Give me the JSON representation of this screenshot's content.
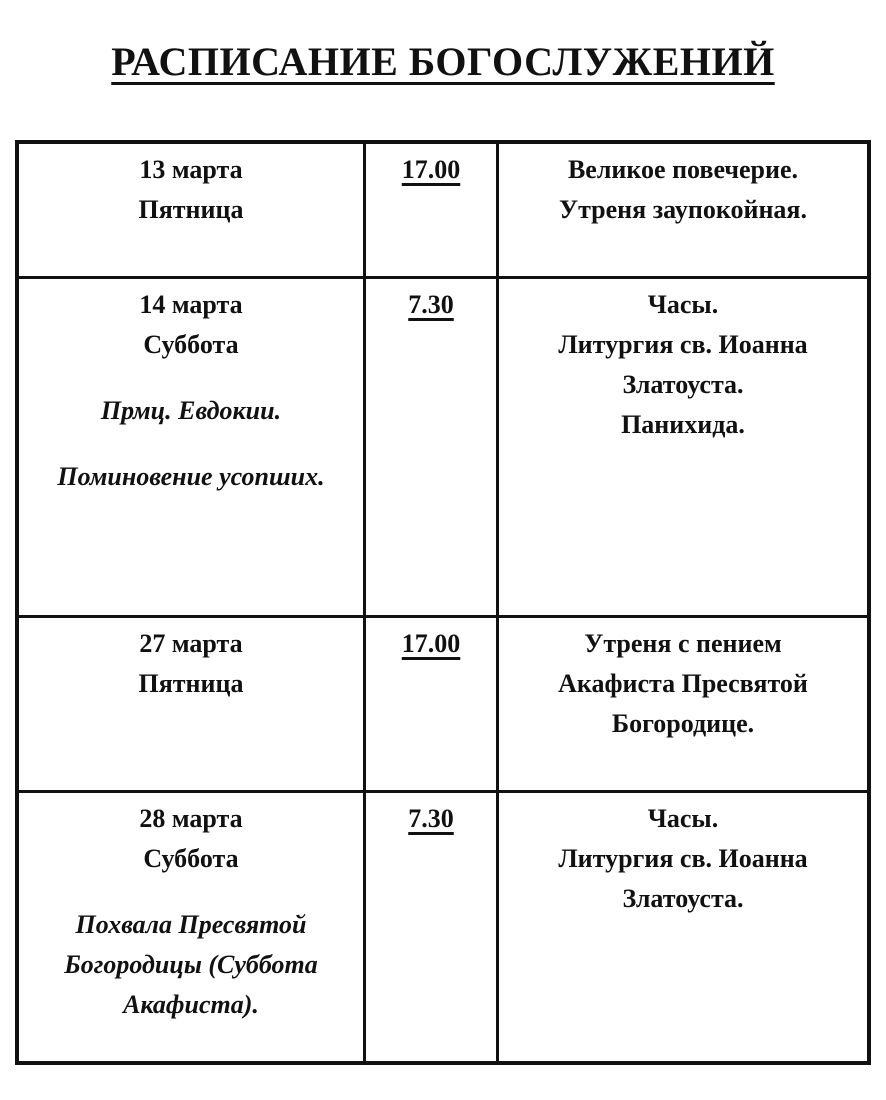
{
  "page": {
    "title": "РАСПИСАНИЕ БОГОСЛУЖЕНИЙ",
    "background_color": "#ffffff",
    "text_color": "#111111",
    "border_color": "#111111"
  },
  "table": {
    "rows": [
      {
        "date": [
          "13 марта",
          "Пятница"
        ],
        "notes": [],
        "time": "17.00",
        "services": [
          "Великое повечерие.",
          "Утреня заупокойная."
        ]
      },
      {
        "date": [
          "14 марта",
          "Суббота"
        ],
        "notes": [
          [
            "Прмц. Евдокии."
          ],
          [
            "Поминовение усопших."
          ]
        ],
        "time": "7.30",
        "services": [
          "Часы.",
          "Литургия св. Иоанна",
          "Златоуста.",
          "Панихида."
        ]
      },
      {
        "date": [
          "27 марта",
          "Пятница"
        ],
        "notes": [],
        "time": "17.00",
        "services": [
          "Утреня с пением",
          "Акафиста Пресвятой",
          "Богородице."
        ]
      },
      {
        "date": [
          "28 марта",
          "Суббота"
        ],
        "notes": [
          [
            "Похвала Пресвятой",
            "Богородицы (Суббота",
            "Акафиста)."
          ]
        ],
        "time": "7.30",
        "services": [
          "Часы.",
          "Литургия св. Иоанна",
          "Златоуста."
        ]
      }
    ]
  }
}
